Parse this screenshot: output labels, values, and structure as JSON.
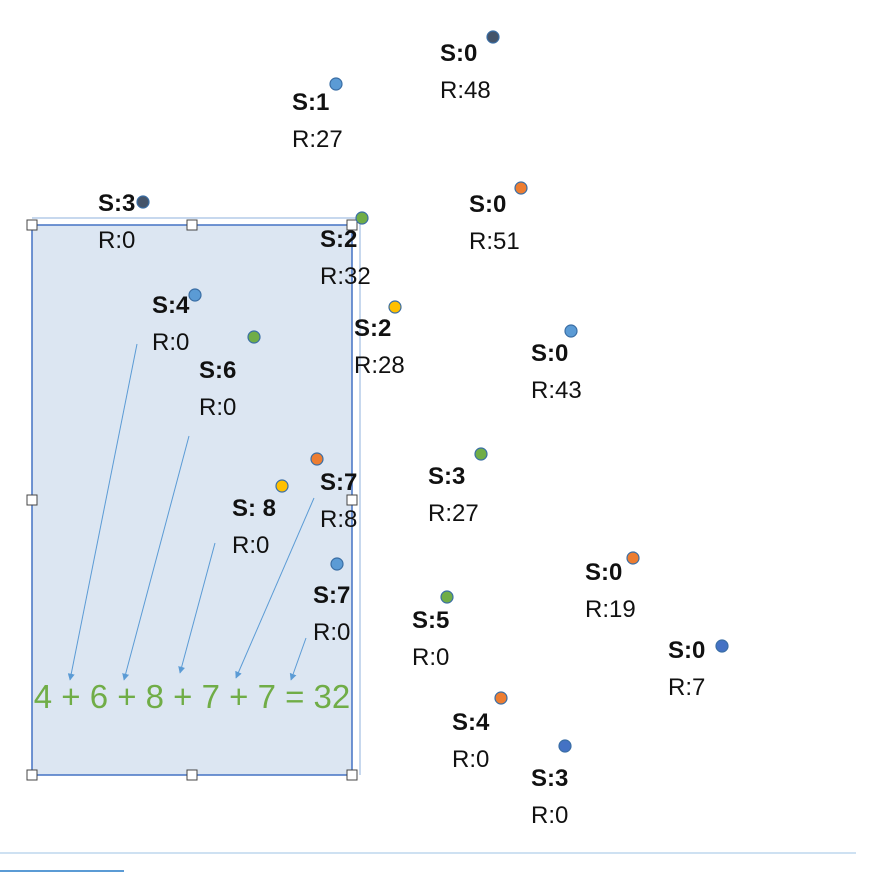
{
  "colors": {
    "selection_fill": "#dce6f2",
    "selection_border": "#4472c4",
    "arrow": "#5b9bd5",
    "sum_text": "#70ad47",
    "dot_dark": "#44546a",
    "dot_blue": "#5b9bd5",
    "dot_green": "#70ad47",
    "dot_orange": "#ed7d31",
    "dot_yellow": "#ffc000",
    "dot_navy": "#4472c4"
  },
  "sum_text": "4 + 6 + 8 + 7 + 7 = 32",
  "nodes": [
    {
      "id": "n1",
      "s": "S:0",
      "r": "R:48",
      "dot_color": "dot_dark"
    },
    {
      "id": "n2",
      "s": "S:1",
      "r": "R:27",
      "dot_color": "dot_blue"
    },
    {
      "id": "n3",
      "s": "S:3",
      "r": "R:0",
      "dot_color": "dot_dark"
    },
    {
      "id": "n4",
      "s": "S:0",
      "r": "R:51",
      "dot_color": "dot_orange"
    },
    {
      "id": "n5",
      "s": "S:2",
      "r": "R:32",
      "dot_color": "dot_green"
    },
    {
      "id": "n6",
      "s": "S:4",
      "r": "R:0",
      "dot_color": "dot_blue"
    },
    {
      "id": "n7",
      "s": "S:2",
      "r": "R:28",
      "dot_color": "dot_yellow"
    },
    {
      "id": "n8",
      "s": "S:6",
      "r": "R:0",
      "dot_color": "dot_green"
    },
    {
      "id": "n9",
      "s": "S:0",
      "r": "R:43",
      "dot_color": "dot_blue"
    },
    {
      "id": "n10",
      "s": "S:3",
      "r": "R:27",
      "dot_color": "dot_green"
    },
    {
      "id": "n11",
      "s": "S:7",
      "r": "R:8",
      "dot_color": "dot_orange"
    },
    {
      "id": "n12",
      "s": "S: 8",
      "r": "R:0",
      "dot_color": "dot_yellow"
    },
    {
      "id": "n13",
      "s": "S:7",
      "r": "R:0",
      "dot_color": "dot_blue"
    },
    {
      "id": "n14",
      "s": "S:0",
      "r": "R:19",
      "dot_color": "dot_orange"
    },
    {
      "id": "n15",
      "s": "S:5",
      "r": "R:0",
      "dot_color": "dot_green"
    },
    {
      "id": "n16",
      "s": "S:0",
      "r": "R:7",
      "dot_color": "dot_navy"
    },
    {
      "id": "n17",
      "s": "S:4",
      "r": "R:0",
      "dot_color": "dot_orange"
    },
    {
      "id": "n18",
      "s": "S:3",
      "r": "R:0",
      "dot_color": "dot_navy"
    }
  ]
}
